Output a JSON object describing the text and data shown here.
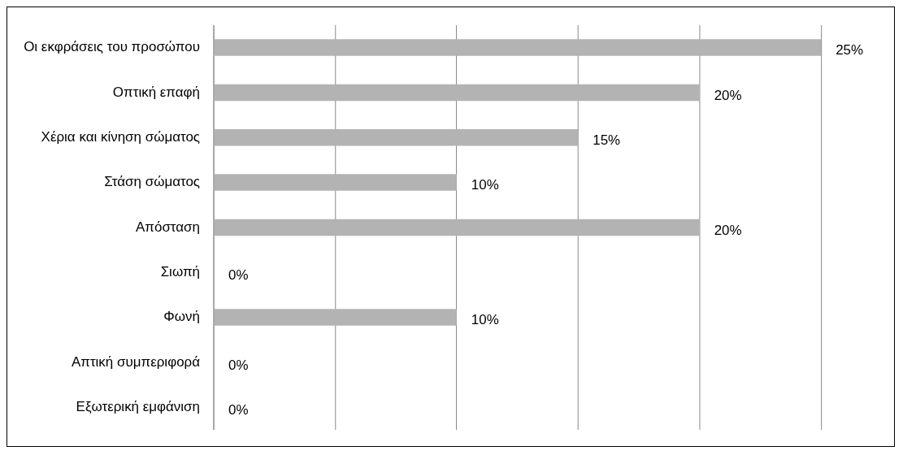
{
  "chart_data": {
    "type": "bar",
    "orientation": "horizontal",
    "categories": [
      "Οι εκφράσεις του προσώπου",
      "Οπτική επαφή",
      "Χέρια και κίνηση σώματος",
      "Στάση σώματος",
      "Απόσταση",
      "Σιωπή",
      "Φωνή",
      "Απτική συμπεριφορά",
      "Εξωτερική εμφάνιση"
    ],
    "values": [
      25,
      20,
      15,
      10,
      20,
      0,
      10,
      0,
      0
    ],
    "value_labels": [
      "25%",
      "20%",
      "15%",
      "10%",
      "20%",
      "0%",
      "10%",
      "0%",
      "0%"
    ],
    "color": "#b3b3b3",
    "xlim": [
      0,
      25
    ],
    "xticks": [
      {
        "value": 0,
        "label": null
      },
      {
        "value": 5,
        "label": null
      },
      {
        "value": 10,
        "label": null
      },
      {
        "value": 15,
        "label": null
      },
      {
        "value": 20,
        "label": null
      },
      {
        "value": 25,
        "label": null
      }
    ],
    "tick_labels": "y",
    "grid": "x",
    "legend": false
  }
}
